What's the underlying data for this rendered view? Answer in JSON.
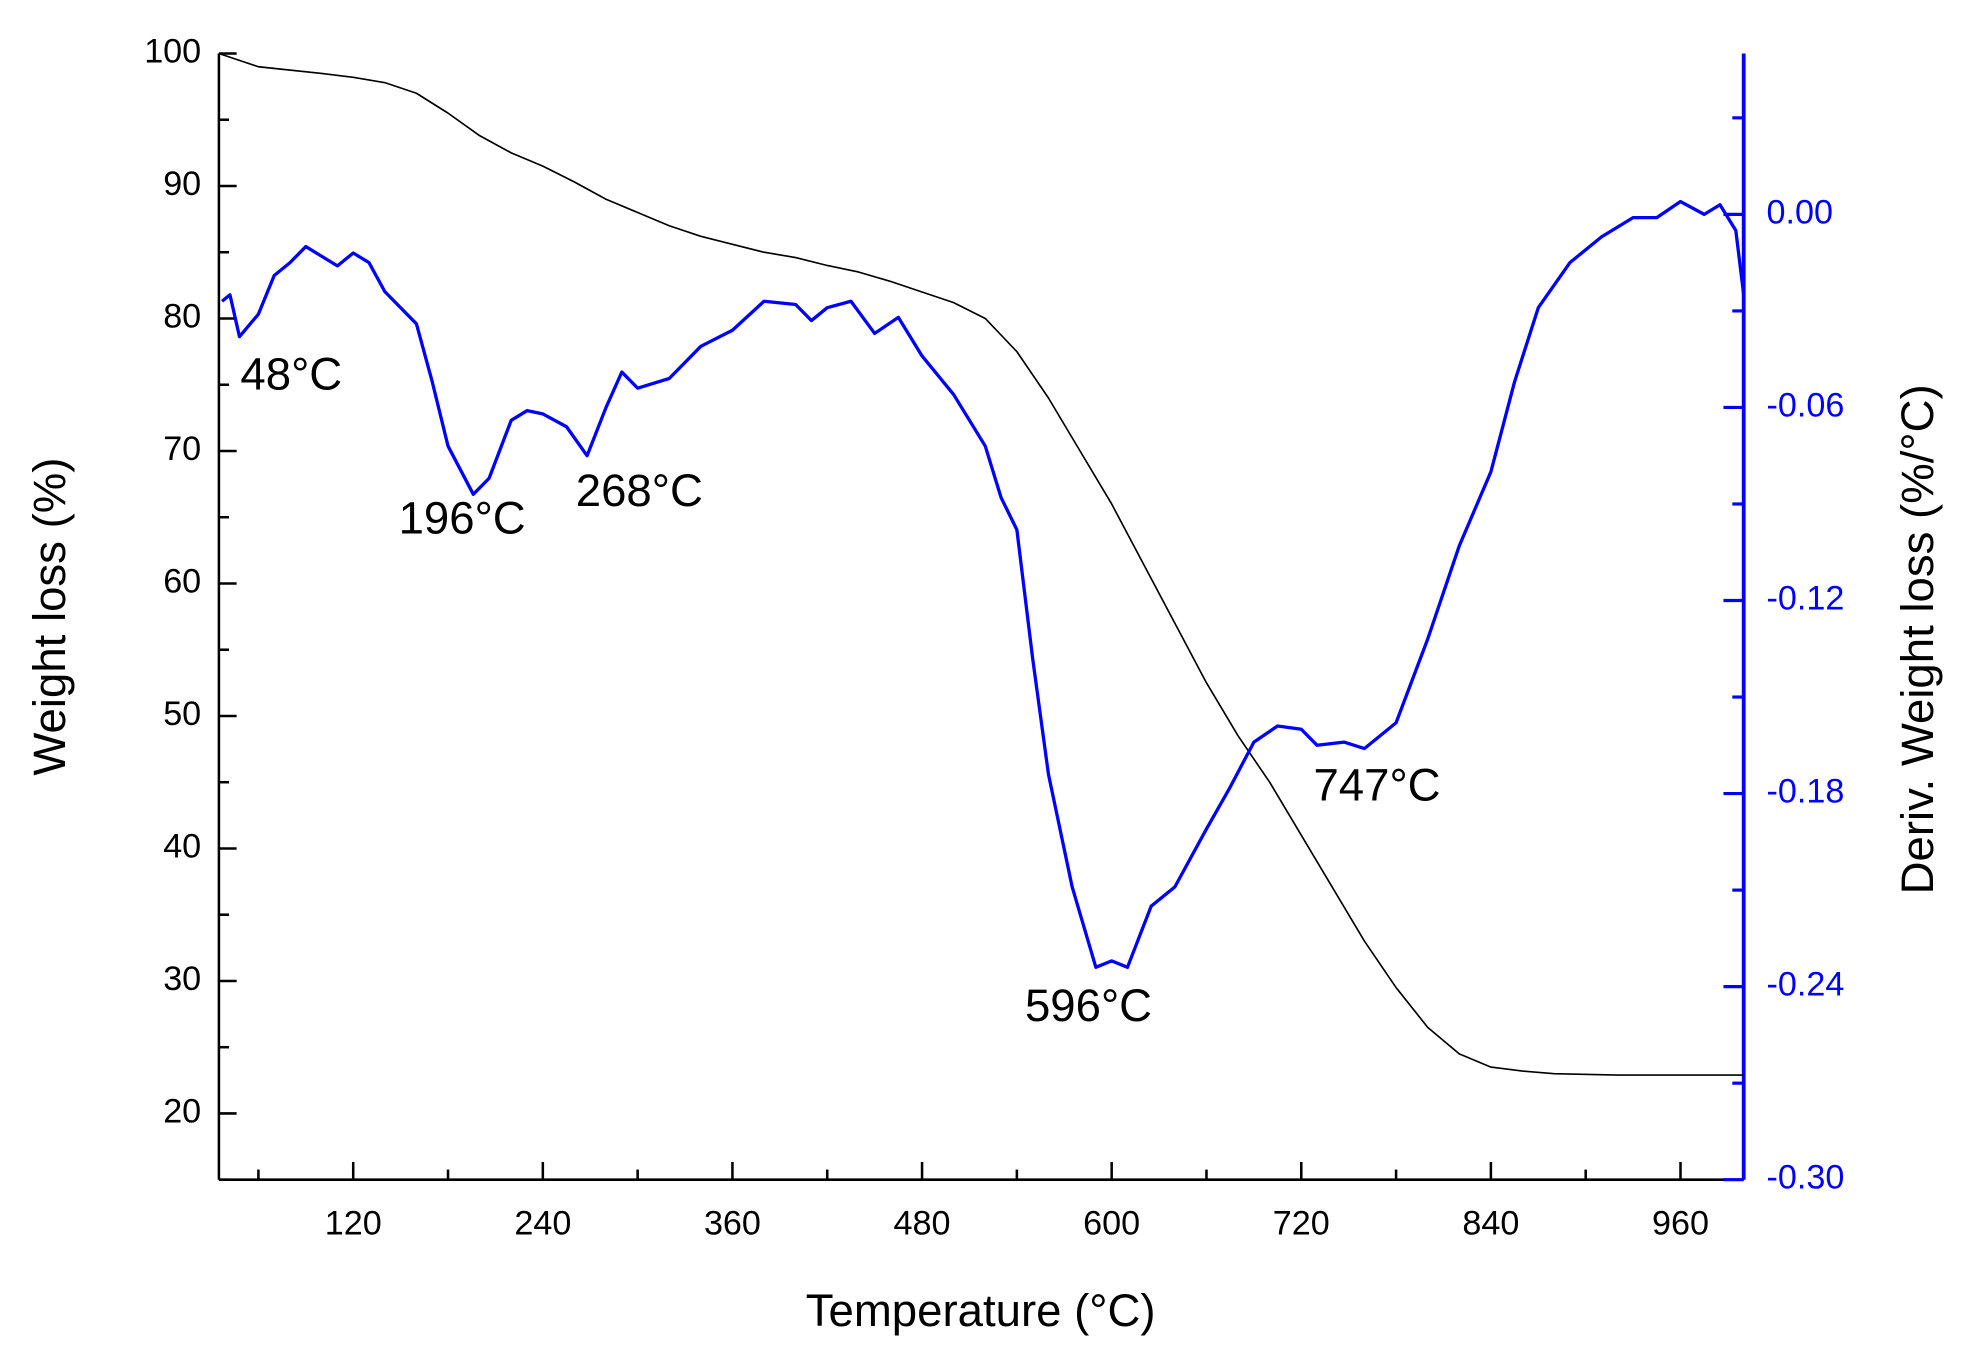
{
  "chart_data": {
    "type": "line",
    "xlabel": "Temperature (°C)",
    "ylabel": "Weight loss (%)",
    "y2label": "Deriv. Weight loss (%/°C)",
    "xlim": [
      35,
      1000
    ],
    "xticks": [
      120,
      240,
      360,
      480,
      600,
      720,
      840,
      960
    ],
    "xminorticks": [
      60,
      180,
      300,
      420,
      540,
      660,
      780,
      900
    ],
    "ylim": [
      15,
      100
    ],
    "yticks": [
      20,
      30,
      40,
      50,
      60,
      70,
      80,
      90,
      100
    ],
    "yminorticks": [
      15,
      25,
      35,
      45,
      55,
      65,
      75,
      85,
      95
    ],
    "y2lim": [
      -0.3,
      0.05
    ],
    "y2ticks": [
      {
        "value": -0.3,
        "label": "-0.30"
      },
      {
        "value": -0.24,
        "label": "-0.24"
      },
      {
        "value": -0.18,
        "label": "-0.18"
      },
      {
        "value": -0.12,
        "label": "-0.12"
      },
      {
        "value": -0.06,
        "label": "-0.06"
      },
      {
        "value": 0.0,
        "label": "0.00"
      }
    ],
    "y2minorticks": [
      -0.27,
      -0.21,
      -0.15,
      -0.09,
      -0.03,
      0.03
    ],
    "y2color": "#0000ff",
    "series": [
      {
        "color": "#000000",
        "axis": "y",
        "x": [
          35,
          60,
          100,
          120,
          140,
          160,
          180,
          200,
          220,
          240,
          260,
          280,
          300,
          320,
          340,
          360,
          380,
          400,
          420,
          440,
          460,
          480,
          500,
          520,
          540,
          560,
          580,
          600,
          620,
          640,
          660,
          680,
          700,
          720,
          740,
          760,
          780,
          800,
          820,
          840,
          860,
          880,
          920,
          1000
        ],
        "values": [
          100,
          99,
          98.5,
          98.2,
          97.8,
          97,
          95.5,
          93.8,
          92.5,
          91.5,
          90.3,
          89,
          88,
          87,
          86.2,
          85.6,
          85,
          84.6,
          84,
          83.5,
          82.8,
          82,
          81.2,
          80,
          77.5,
          74,
          70,
          66,
          61.5,
          57,
          52.5,
          48.5,
          45,
          41,
          37,
          33,
          29.5,
          26.5,
          24.5,
          23.5,
          23.2,
          23,
          22.9,
          22.9
        ]
      },
      {
        "color": "#0000ff",
        "axis": "y2",
        "x": [
          37,
          42,
          48,
          60,
          70,
          80,
          90,
          100,
          110,
          120,
          130,
          140,
          160,
          170,
          180,
          196,
          206,
          220,
          230,
          240,
          255,
          268,
          280,
          290,
          300,
          320,
          340,
          360,
          380,
          400,
          410,
          420,
          435,
          450,
          465,
          480,
          500,
          520,
          530,
          540,
          550,
          560,
          575,
          590,
          600,
          610,
          625,
          640,
          660,
          675,
          690,
          705,
          720,
          730,
          747,
          760,
          780,
          800,
          820,
          840,
          855,
          870,
          890,
          910,
          930,
          945,
          960,
          975,
          985,
          995,
          1000
        ],
        "values": [
          -0.027,
          -0.025,
          -0.038,
          -0.031,
          -0.019,
          -0.015,
          -0.01,
          -0.013,
          -0.016,
          -0.012,
          -0.015,
          -0.024,
          -0.034,
          -0.052,
          -0.072,
          -0.087,
          -0.082,
          -0.064,
          -0.061,
          -0.062,
          -0.066,
          -0.075,
          -0.06,
          -0.049,
          -0.054,
          -0.051,
          -0.041,
          -0.036,
          -0.027,
          -0.028,
          -0.033,
          -0.029,
          -0.027,
          -0.037,
          -0.032,
          -0.044,
          -0.056,
          -0.072,
          -0.088,
          -0.098,
          -0.138,
          -0.174,
          -0.209,
          -0.234,
          -0.232,
          -0.234,
          -0.215,
          -0.209,
          -0.191,
          -0.178,
          -0.164,
          -0.159,
          -0.16,
          -0.165,
          -0.164,
          -0.166,
          -0.158,
          -0.132,
          -0.103,
          -0.08,
          -0.052,
          -0.029,
          -0.015,
          -0.007,
          -0.001,
          -0.001,
          0.004,
          0.0,
          0.003,
          -0.005,
          -0.025
        ]
      }
    ],
    "annotations": [
      "48°C",
      "196°C",
      "268°C",
      "596°C",
      "747°C"
    ]
  }
}
